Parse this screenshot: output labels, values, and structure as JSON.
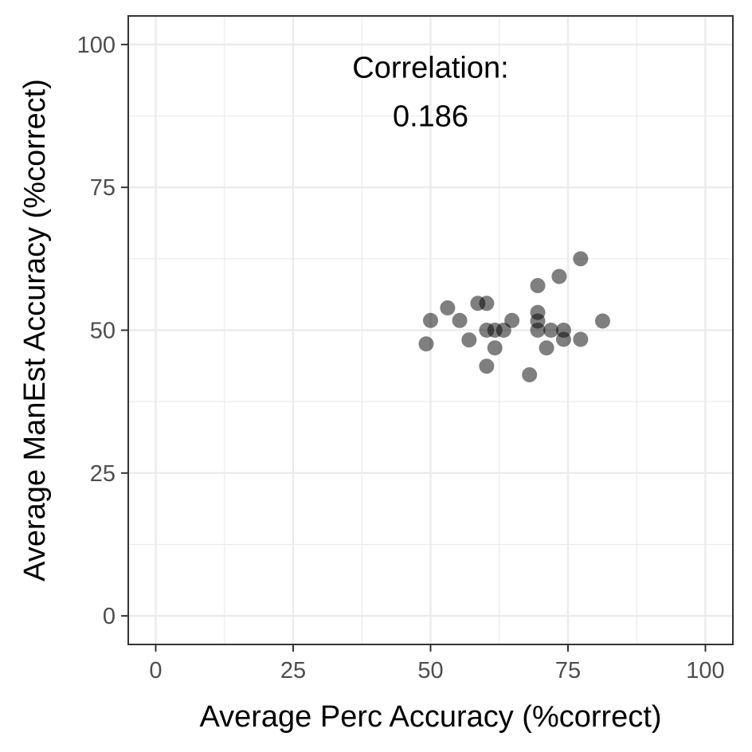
{
  "chart_data": {
    "type": "scatter",
    "xlabel": "Average Perc Accuracy (%correct)",
    "ylabel": "Average ManEst Accuracy (%correct)",
    "xlim": [
      -5,
      105
    ],
    "ylim": [
      -5,
      105
    ],
    "xticks": [
      0,
      25,
      50,
      75,
      100
    ],
    "yticks": [
      0,
      25,
      50,
      75,
      100
    ],
    "annotation": {
      "line1": "Correlation:",
      "line2": "0.186",
      "x": 50,
      "y1": 96,
      "y2": 87.5
    },
    "points": [
      {
        "x": 49.2,
        "y": 47.6
      },
      {
        "x": 50.0,
        "y": 51.7
      },
      {
        "x": 53.1,
        "y": 53.9
      },
      {
        "x": 55.3,
        "y": 51.7
      },
      {
        "x": 57.0,
        "y": 48.3
      },
      {
        "x": 58.6,
        "y": 54.7
      },
      {
        "x": 60.2,
        "y": 54.7
      },
      {
        "x": 60.2,
        "y": 50.0
      },
      {
        "x": 60.2,
        "y": 43.7
      },
      {
        "x": 61.7,
        "y": 50.0
      },
      {
        "x": 61.7,
        "y": 46.9
      },
      {
        "x": 63.3,
        "y": 50.0
      },
      {
        "x": 64.8,
        "y": 51.7
      },
      {
        "x": 68.0,
        "y": 42.2
      },
      {
        "x": 69.5,
        "y": 57.8
      },
      {
        "x": 69.5,
        "y": 53.1
      },
      {
        "x": 69.5,
        "y": 51.6
      },
      {
        "x": 69.5,
        "y": 50.0
      },
      {
        "x": 71.1,
        "y": 46.9
      },
      {
        "x": 71.9,
        "y": 50.0
      },
      {
        "x": 73.4,
        "y": 59.4
      },
      {
        "x": 74.2,
        "y": 50.0
      },
      {
        "x": 74.2,
        "y": 48.4
      },
      {
        "x": 77.3,
        "y": 62.5
      },
      {
        "x": 77.3,
        "y": 48.4
      },
      {
        "x": 81.3,
        "y": 51.6
      }
    ],
    "colors": {
      "point": "#000000",
      "point_opacity": 0.5,
      "grid": "#ebebeb",
      "panel_border": "#333333",
      "tick_text": "#4d4d4d"
    },
    "grid": true,
    "legend": "none"
  }
}
